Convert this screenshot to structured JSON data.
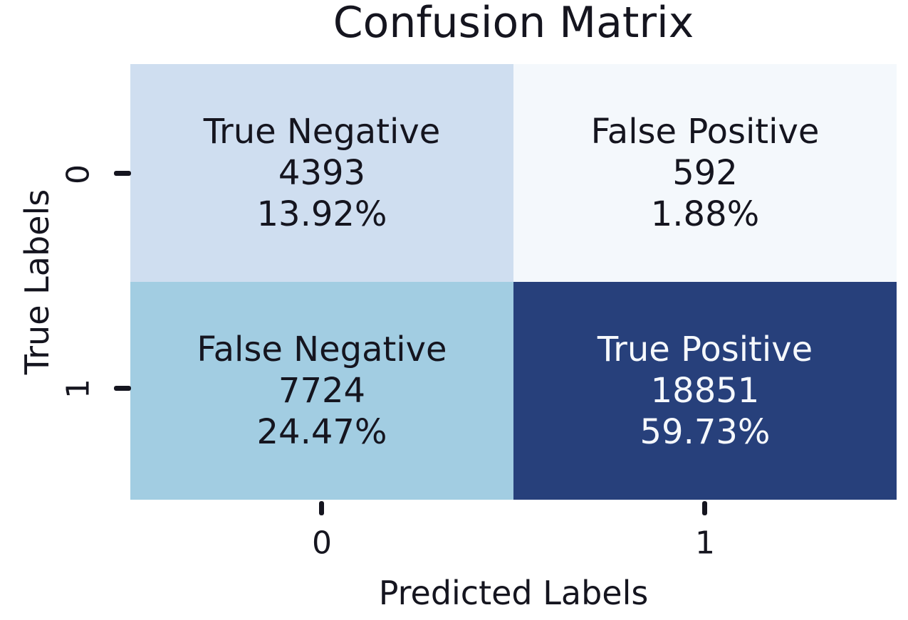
{
  "chart_data": {
    "type": "heatmap",
    "title": "Confusion Matrix",
    "xlabel": "Predicted Labels",
    "ylabel": "True Labels",
    "x_tick_labels": [
      "0",
      "1"
    ],
    "y_tick_labels": [
      "0",
      "1"
    ],
    "matrix_counts": [
      [
        4393,
        592
      ],
      [
        7724,
        18851
      ]
    ],
    "matrix_percents": [
      [
        "13.92%",
        "1.88%"
      ],
      [
        "24.47%",
        "59.73%"
      ]
    ],
    "legend_position": "none",
    "grid": false,
    "cells": [
      {
        "row": 0,
        "col": 0,
        "label": "True Negative",
        "count": "4393",
        "percent": "13.92%",
        "bg": "#cfdef0",
        "fg": "#15151f"
      },
      {
        "row": 0,
        "col": 1,
        "label": "False Positive",
        "count": "592",
        "percent": "1.88%",
        "bg": "#f4f8fc",
        "fg": "#15151f"
      },
      {
        "row": 1,
        "col": 0,
        "label": "False Negative",
        "count": "7724",
        "percent": "24.47%",
        "bg": "#a2cde2",
        "fg": "#15151f"
      },
      {
        "row": 1,
        "col": 1,
        "label": "True Positive",
        "count": "18851",
        "percent": "59.73%",
        "bg": "#27407b",
        "fg": "#f5f8fc"
      }
    ],
    "colors": {
      "text": "#15151f",
      "background": "#ffffff",
      "tick": "#15151f"
    }
  }
}
